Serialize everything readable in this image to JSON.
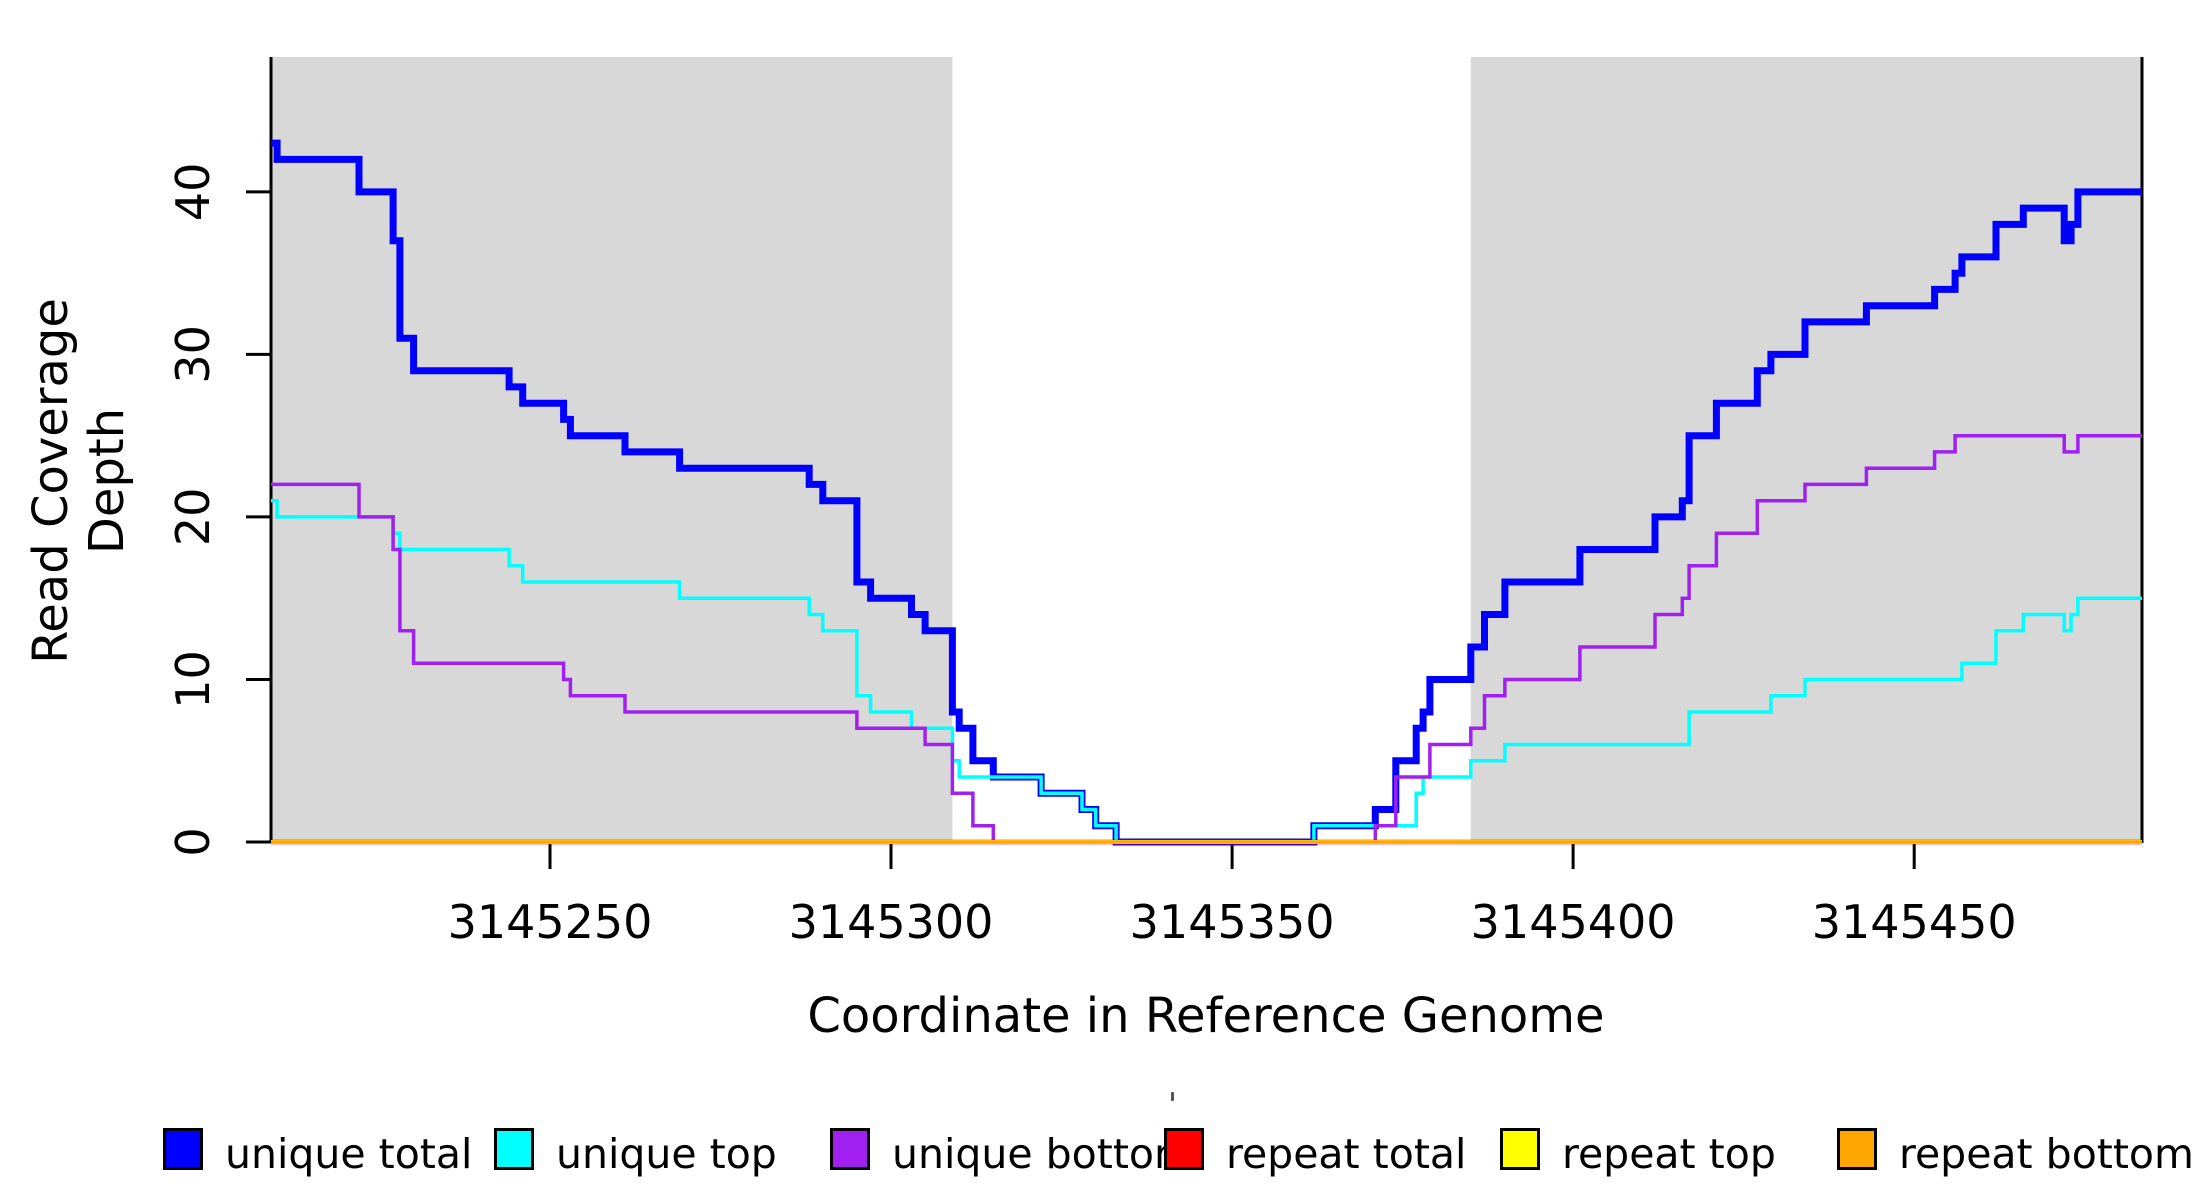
{
  "chart_data": {
    "type": "line",
    "subtype": "step-after-coverage-plot",
    "title": "",
    "xlabel": "Coordinate in Reference Genome",
    "ylabel": "Read Coverage Depth",
    "xlim": [
      3145209.1,
      3145483.4
    ],
    "ylim": [
      0,
      48.3
    ],
    "grid": false,
    "legend_position": "bottom",
    "xticks": [
      3145250,
      3145300,
      3145350,
      3145400,
      3145450
    ],
    "yticks": [
      0,
      10,
      20,
      30,
      40
    ],
    "shade_color": "#D8D8D8",
    "axis_color": "#000000",
    "shaded_regions": [
      {
        "x0": 3145209.1,
        "x1": 3145309
      },
      {
        "x0": 3145385,
        "x1": 3145483.4
      }
    ],
    "series": [
      {
        "name": "unique total",
        "color": "#0000FF",
        "width": 7,
        "points": [
          [
            3145209.1,
            43
          ],
          [
            3145210,
            42
          ],
          [
            3145222,
            40
          ],
          [
            3145227,
            37
          ],
          [
            3145228,
            31
          ],
          [
            3145230,
            29
          ],
          [
            3145244,
            28
          ],
          [
            3145246,
            27
          ],
          [
            3145252,
            26
          ],
          [
            3145253,
            25
          ],
          [
            3145261,
            24
          ],
          [
            3145269,
            23
          ],
          [
            3145288,
            22
          ],
          [
            3145290,
            21
          ],
          [
            3145295,
            16
          ],
          [
            3145297,
            15
          ],
          [
            3145303,
            14
          ],
          [
            3145305,
            13
          ],
          [
            3145309,
            8
          ],
          [
            3145310,
            7
          ],
          [
            3145312,
            5
          ],
          [
            3145315,
            4
          ],
          [
            3145322,
            3
          ],
          [
            3145328,
            2
          ],
          [
            3145330,
            1
          ],
          [
            3145333,
            0
          ],
          [
            3145362,
            1
          ],
          [
            3145371,
            2
          ],
          [
            3145374,
            5
          ],
          [
            3145377,
            7
          ],
          [
            3145378,
            8
          ],
          [
            3145379,
            10
          ],
          [
            3145385,
            12
          ],
          [
            3145387,
            14
          ],
          [
            3145390,
            16
          ],
          [
            3145401,
            18
          ],
          [
            3145412,
            20
          ],
          [
            3145416,
            21
          ],
          [
            3145417,
            25
          ],
          [
            3145421,
            27
          ],
          [
            3145427,
            29
          ],
          [
            3145429,
            30
          ],
          [
            3145434,
            32
          ],
          [
            3145443,
            33
          ],
          [
            3145453,
            34
          ],
          [
            3145456,
            35
          ],
          [
            3145457,
            36
          ],
          [
            3145462,
            38
          ],
          [
            3145466,
            39
          ],
          [
            3145472,
            37
          ],
          [
            3145473,
            38
          ],
          [
            3145474,
            40
          ]
        ]
      },
      {
        "name": "unique top",
        "color": "#00FFFF",
        "width": 3.5,
        "points": [
          [
            3145209.1,
            21
          ],
          [
            3145210,
            20
          ],
          [
            3145227,
            19
          ],
          [
            3145228,
            18
          ],
          [
            3145244,
            17
          ],
          [
            3145246,
            16
          ],
          [
            3145269,
            15
          ],
          [
            3145288,
            14
          ],
          [
            3145290,
            13
          ],
          [
            3145295,
            9
          ],
          [
            3145297,
            8
          ],
          [
            3145303,
            7
          ],
          [
            3145309,
            5
          ],
          [
            3145310,
            4
          ],
          [
            3145322,
            3
          ],
          [
            3145328,
            2
          ],
          [
            3145330,
            1
          ],
          [
            3145333,
            0
          ],
          [
            3145362,
            1
          ],
          [
            3145377,
            3
          ],
          [
            3145378,
            4
          ],
          [
            3145385,
            5
          ],
          [
            3145390,
            6
          ],
          [
            3145417,
            8
          ],
          [
            3145429,
            9
          ],
          [
            3145434,
            10
          ],
          [
            3145457,
            11
          ],
          [
            3145462,
            13
          ],
          [
            3145466,
            14
          ],
          [
            3145472,
            13
          ],
          [
            3145473,
            14
          ],
          [
            3145474,
            15
          ]
        ]
      },
      {
        "name": "unique bottom",
        "color": "#A020F0",
        "width": 3.5,
        "points": [
          [
            3145209.1,
            22
          ],
          [
            3145222,
            20
          ],
          [
            3145227,
            18
          ],
          [
            3145228,
            13
          ],
          [
            3145230,
            11
          ],
          [
            3145252,
            10
          ],
          [
            3145253,
            9
          ],
          [
            3145261,
            8
          ],
          [
            3145295,
            7
          ],
          [
            3145305,
            6
          ],
          [
            3145309,
            3
          ],
          [
            3145312,
            1
          ],
          [
            3145315,
            0
          ],
          [
            3145371,
            1
          ],
          [
            3145374,
            4
          ],
          [
            3145379,
            6
          ],
          [
            3145385,
            7
          ],
          [
            3145387,
            9
          ],
          [
            3145390,
            10
          ],
          [
            3145401,
            12
          ],
          [
            3145412,
            14
          ],
          [
            3145416,
            15
          ],
          [
            3145417,
            17
          ],
          [
            3145421,
            19
          ],
          [
            3145427,
            21
          ],
          [
            3145434,
            22
          ],
          [
            3145443,
            23
          ],
          [
            3145453,
            24
          ],
          [
            3145456,
            25
          ],
          [
            3145472,
            24
          ],
          [
            3145474,
            25
          ]
        ]
      },
      {
        "name": "repeat total",
        "color": "#FF0000",
        "width": 4.5,
        "points": [
          [
            3145209.1,
            0
          ]
        ]
      },
      {
        "name": "repeat top",
        "color": "#FFFF00",
        "width": 4,
        "points": [
          [
            3145209.1,
            0
          ]
        ]
      },
      {
        "name": "repeat bottom",
        "color": "#FFA500",
        "width": 3.5,
        "points": [
          [
            3145209.1,
            0
          ]
        ]
      }
    ],
    "legend": [
      {
        "label": "unique total",
        "color": "#0000FF"
      },
      {
        "label": "unique top",
        "color": "#00FFFF"
      },
      {
        "label": "unique bottom",
        "color": "#A020F0"
      },
      {
        "label": "repeat total",
        "color": "#FF0000"
      },
      {
        "label": "repeat top",
        "color": "#FFFF00"
      },
      {
        "label": "repeat bottom",
        "color": "#FFA500"
      }
    ]
  }
}
